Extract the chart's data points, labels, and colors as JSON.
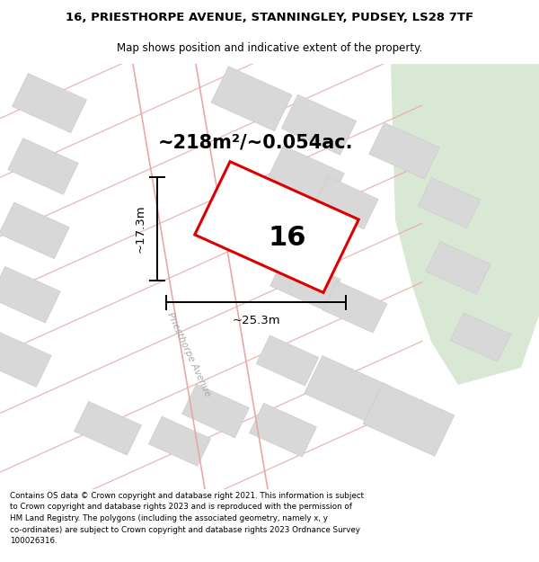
{
  "title_line1": "16, PRIESTHORPE AVENUE, STANNINGLEY, PUDSEY, LS28 7TF",
  "title_line2": "Map shows position and indicative extent of the property.",
  "footer_text": "Contains OS data © Crown copyright and database right 2021. This information is subject\nto Crown copyright and database rights 2023 and is reproduced with the permission of\nHM Land Registry. The polygons (including the associated geometry, namely x, y\nco-ordinates) are subject to Crown copyright and database rights 2023 Ordnance Survey\n100026316.",
  "area_label": "~218m²/~0.054ac.",
  "number_label": "16",
  "dim_width": "~25.3m",
  "dim_height": "~17.3m",
  "street_label": "Priesthorpe Avenue",
  "map_bg": "#f2f2f2",
  "green_color": "#d8e8d4",
  "plot_color": "#dd0000",
  "road_line": "#e8a8a8",
  "building_fill": "#d8d8d8",
  "building_edge": "#cccccc",
  "title_fontsize": 9.5,
  "subtitle_fontsize": 8.5,
  "footer_fontsize": 6.3,
  "area_fontsize": 15,
  "number_fontsize": 22,
  "dim_fontsize": 9.5
}
